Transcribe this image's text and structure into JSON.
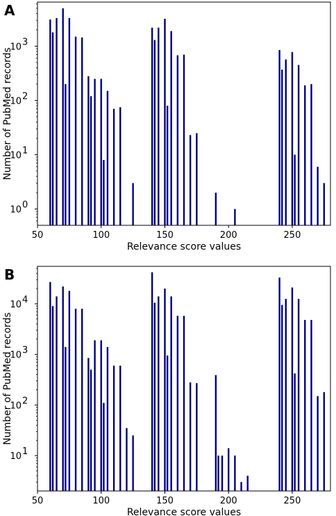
{
  "chart_data": [
    {
      "panel": "A",
      "type": "bar",
      "xlabel": "Relevance score values",
      "ylabel": "Number of PubMed records",
      "xlim": [
        50,
        280
      ],
      "xticks": [
        50,
        100,
        150,
        200,
        250
      ],
      "ylog": true,
      "ylim": [
        0.5,
        6500
      ],
      "yticks": [
        {
          "value": 1,
          "base": "10",
          "exp": "0"
        },
        {
          "value": 10,
          "base": "10",
          "exp": "1"
        },
        {
          "value": 100,
          "base": "10",
          "exp": "2"
        },
        {
          "value": 1000,
          "base": "10",
          "exp": "3"
        }
      ],
      "color": "#000080",
      "grid": false,
      "x": [
        60,
        62,
        65,
        70,
        72,
        75,
        80,
        85,
        90,
        92,
        95,
        100,
        102,
        105,
        110,
        115,
        125,
        140,
        142,
        145,
        150,
        152,
        155,
        160,
        165,
        170,
        175,
        190,
        205,
        240,
        242,
        245,
        250,
        252,
        255,
        260,
        265,
        270,
        275
      ],
      "values": [
        3100,
        1800,
        3300,
        5000,
        200,
        3300,
        1500,
        1450,
        280,
        120,
        250,
        250,
        8,
        150,
        70,
        75,
        3,
        2200,
        1300,
        2200,
        3200,
        80,
        1900,
        680,
        700,
        23,
        25,
        2,
        1,
        850,
        370,
        570,
        780,
        10,
        450,
        190,
        200,
        6,
        3
      ]
    },
    {
      "panel": "B",
      "type": "bar",
      "xlabel": "Relevance score values",
      "ylabel": "Number of PubMed records",
      "xlim": [
        50,
        280
      ],
      "xticks": [
        50,
        100,
        150,
        200,
        250
      ],
      "ylog": true,
      "ylim": [
        2,
        55000
      ],
      "yticks": [
        {
          "value": 10,
          "base": "10",
          "exp": "1"
        },
        {
          "value": 100,
          "base": "10",
          "exp": "2"
        },
        {
          "value": 1000,
          "base": "10",
          "exp": "3"
        },
        {
          "value": 10000,
          "base": "10",
          "exp": "4"
        }
      ],
      "color": "#000080",
      "grid": false,
      "x": [
        60,
        62,
        65,
        70,
        72,
        75,
        80,
        85,
        90,
        92,
        95,
        100,
        102,
        105,
        110,
        115,
        120,
        125,
        140,
        142,
        145,
        150,
        152,
        155,
        160,
        165,
        170,
        175,
        190,
        192,
        195,
        200,
        205,
        210,
        215,
        240,
        242,
        245,
        250,
        252,
        255,
        260,
        265,
        270,
        275
      ],
      "values": [
        27000,
        9000,
        14000,
        22000,
        1400,
        18000,
        8000,
        8000,
        850,
        500,
        1900,
        1900,
        110,
        1400,
        600,
        600,
        35,
        25,
        42000,
        10500,
        14000,
        20000,
        950,
        14000,
        5800,
        5800,
        280,
        270,
        390,
        10,
        10,
        14,
        10,
        3,
        4,
        33000,
        9500,
        12500,
        21000,
        420,
        12500,
        4800,
        4800,
        150,
        180
      ]
    }
  ]
}
